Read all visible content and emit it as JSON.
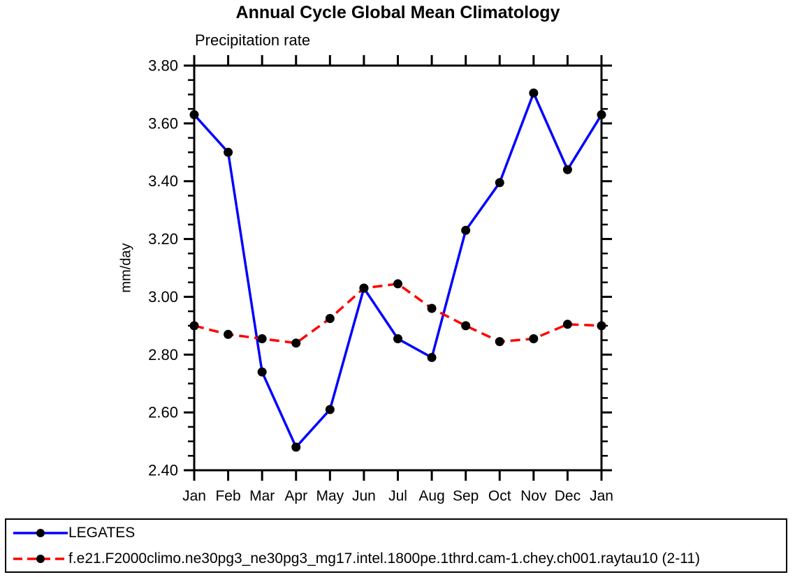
{
  "chart_data": {
    "type": "line",
    "title": "Annual Cycle Global Mean Climatology",
    "subtitle": "Precipitation rate",
    "ylabel": "mm/day",
    "categories": [
      "Jan",
      "Feb",
      "Mar",
      "Apr",
      "May",
      "Jun",
      "Jul",
      "Aug",
      "Sep",
      "Oct",
      "Nov",
      "Dec",
      "Jan"
    ],
    "ylim": [
      2.4,
      3.8
    ],
    "ytick_step": 0.2,
    "ytick_minor_step": 0.05,
    "ytick_labels": [
      "2.40",
      "2.60",
      "2.80",
      "3.00",
      "3.20",
      "3.40",
      "3.60",
      "3.80"
    ],
    "grid": false,
    "legend_position": "bottom-box",
    "axis_color": "#000000",
    "marker_color": "#000000",
    "series": [
      {
        "name": "LEGATES",
        "color": "#0000ff",
        "style": "solid",
        "marker": "circle",
        "values": [
          3.63,
          3.5,
          2.74,
          2.48,
          2.61,
          3.03,
          2.855,
          2.79,
          3.23,
          3.395,
          3.705,
          3.44,
          3.63
        ]
      },
      {
        "name": "f.e21.F2000climo.ne30pg3_ne30pg3_mg17.intel.1800pe.1thrd.cam-1.chey.ch001.raytau10 (2-11)",
        "color": "#ff0000",
        "style": "dashed",
        "marker": "circle",
        "values": [
          2.9,
          2.87,
          2.855,
          2.84,
          2.925,
          3.03,
          3.045,
          2.96,
          2.9,
          2.845,
          2.855,
          2.905,
          2.9
        ]
      }
    ]
  }
}
